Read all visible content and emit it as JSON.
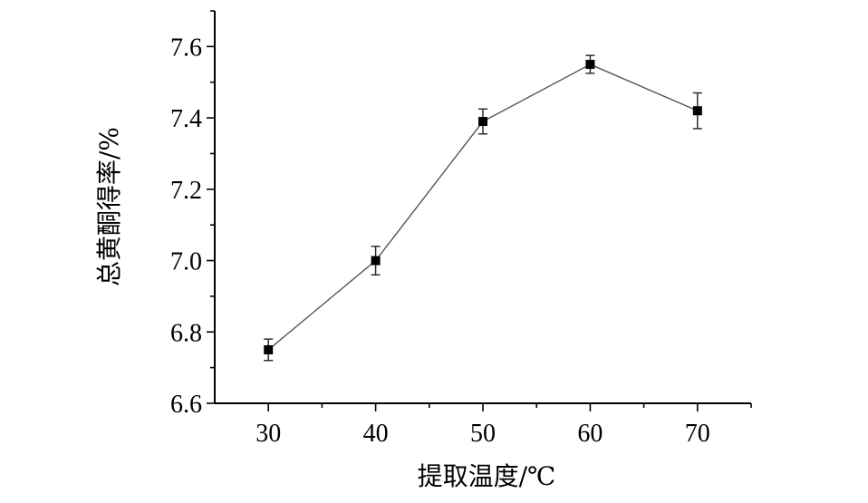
{
  "chart_data": {
    "type": "line",
    "title": "",
    "xlabel": "提取温度/℃",
    "ylabel": "总黄酮得率/%",
    "x": [
      30,
      40,
      50,
      60,
      70
    ],
    "xticks": [
      30,
      40,
      50,
      60,
      70
    ],
    "xlim": [
      25,
      75
    ],
    "ylim": [
      6.6,
      7.7
    ],
    "yticks": [
      6.6,
      6.8,
      7.0,
      7.2,
      7.4,
      7.6
    ],
    "ytick_labels": [
      "6.6",
      "6.8",
      "7.0",
      "7.2",
      "7.4",
      "7.6"
    ],
    "grid": false,
    "legend": "none",
    "series": [
      {
        "values": [
          6.75,
          7.0,
          7.39,
          7.55,
          7.42
        ],
        "errors": [
          0.03,
          0.04,
          0.035,
          0.025,
          0.05
        ],
        "marker": "square",
        "color": "#000000",
        "line_color": "#555555"
      }
    ]
  }
}
